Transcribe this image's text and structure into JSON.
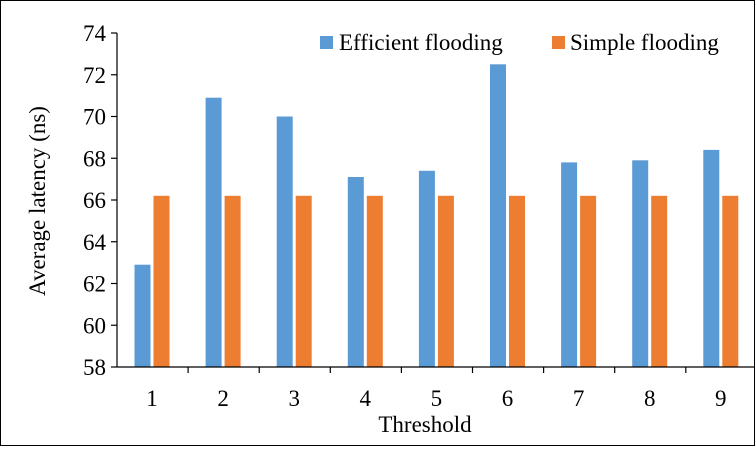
{
  "chart_data": {
    "type": "bar",
    "title": "",
    "xlabel": "Threshold",
    "ylabel": "Average latency (ns)",
    "categories": [
      "1",
      "2",
      "3",
      "4",
      "5",
      "6",
      "7",
      "8",
      "9"
    ],
    "series": [
      {
        "name": "Efficient flooding",
        "color": "#5B9BD5",
        "values": [
          62.9,
          70.9,
          70.0,
          67.1,
          67.4,
          72.5,
          67.8,
          67.9,
          68.4
        ]
      },
      {
        "name": "Simple flooding",
        "color": "#ED7D31",
        "values": [
          66.2,
          66.2,
          66.2,
          66.2,
          66.2,
          66.2,
          66.2,
          66.2,
          66.2
        ]
      }
    ],
    "ylim": [
      58,
      74
    ],
    "yticks": [
      "58",
      "60",
      "62",
      "64",
      "66",
      "68",
      "70",
      "72",
      "74"
    ],
    "grid": false,
    "legend_position": "top-right"
  }
}
